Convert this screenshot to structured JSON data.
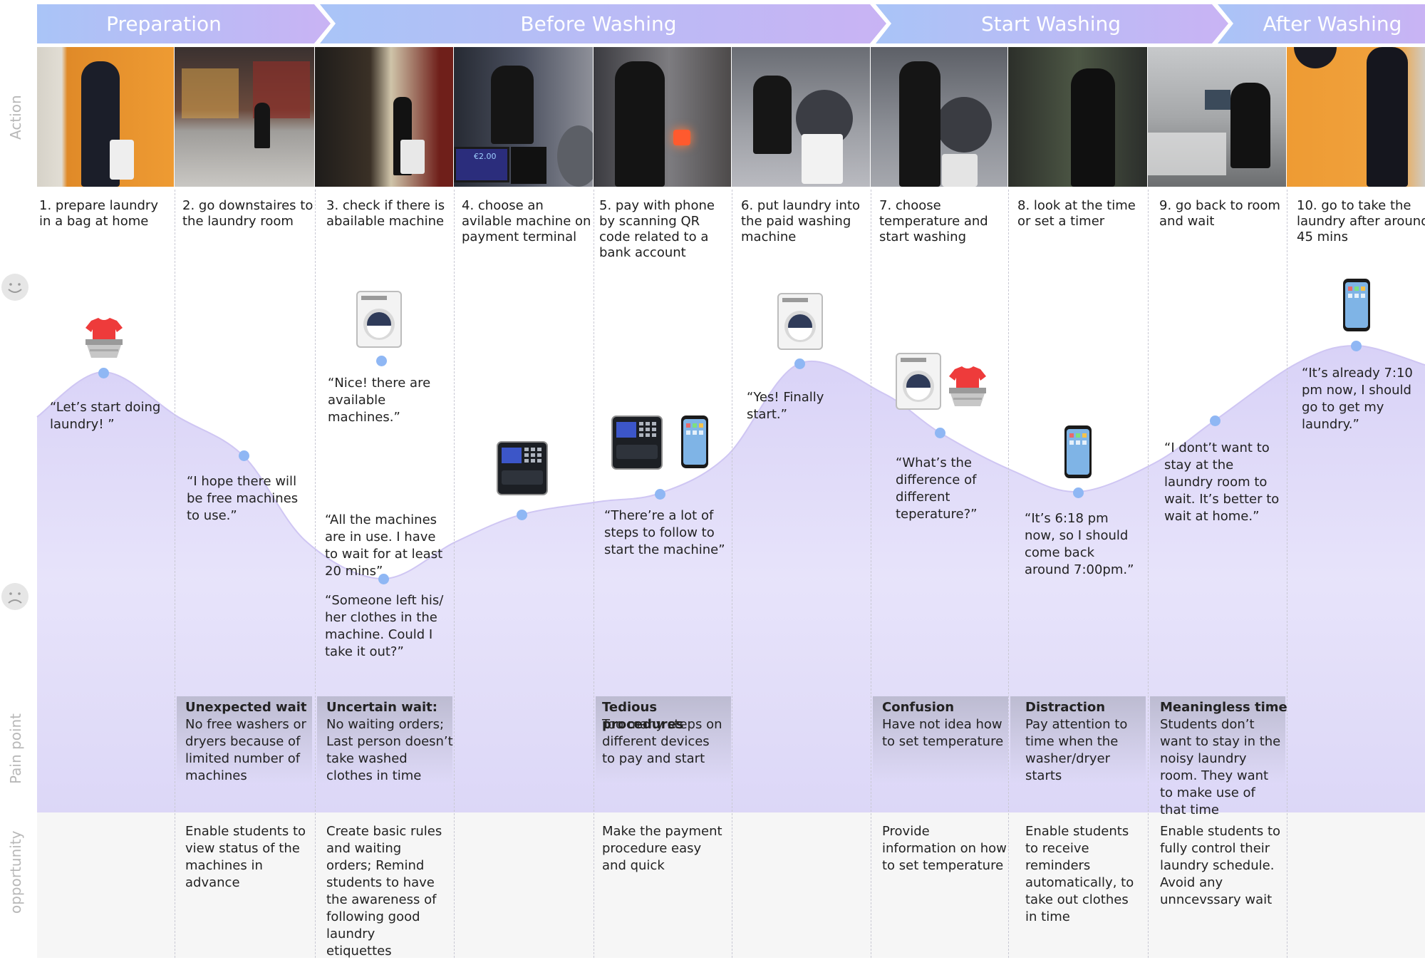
{
  "phases": [
    {
      "label": "Preparation"
    },
    {
      "label": "Before Washing"
    },
    {
      "label": "Start Washing"
    },
    {
      "label": "After Washing"
    }
  ],
  "row_labels": {
    "action": "Action",
    "pain_point": "Pain point",
    "opportunity": "opportunity"
  },
  "steps": [
    "1. prepare laundry in a bag at home",
    "2. go downstaires to the laundry room",
    "3. check if there is abailable machine",
    "4. choose an avilable machine on payment terminal",
    "5. pay with phone by scanning QR code related to a bank account",
    "6. put laundry into the paid washing machine",
    "7. choose temperature and start washing",
    "8. look at the time or set a timer",
    "9. go back to room and wait",
    "10. go to take the laundry after around 45 mins"
  ],
  "terminal_screen": "€2.00",
  "quotes": {
    "q1": "“Let’s start doing laundry! ”",
    "q2": "“I hope there will be free machines to use.”",
    "q3a": "“Nice! there are available machines.”",
    "q3b": "“All the machines are in use. I have to wait for at least 20 mins”",
    "q3c": "“Someone left his/ her clothes in the machine. Could I take it out?”",
    "q5": "“There’re a lot of steps to follow to start the machine”",
    "q6": "“Yes! Finally start.”",
    "q7": "“What’s the difference of different teperature?”",
    "q8": "“It’s 6:18 pm now, so I should come back around 7:00pm.”",
    "q9": "“I dont’t want to stay at the laundry room to wait. It’s better to wait at home.”",
    "q10": "“It’s already 7:10 pm now, I should go to get my laundry.”"
  },
  "pain_points": [
    {
      "title": "Unexpected wait",
      "text": "No free washers or dryers because of limited number of machines"
    },
    {
      "title": "Uncertain wait:",
      "text": "No waiting orders; Last person doesn’t take washed clothes in time"
    },
    {
      "title": "Tedious procedures",
      "text": "Too many steps on different devices to pay and start"
    },
    {
      "title": "Confusion",
      "text": "Have not idea how to set temperature"
    },
    {
      "title": "Distraction",
      "text": "Pay attention to time when the washer/dryer starts"
    },
    {
      "title": "Meaningless time",
      "text": "Students don’t want to stay in the noisy laundry room. They want to make use of that time"
    }
  ],
  "opportunities": [
    "Enable students to view status of the machines in advance",
    "Create basic rules and waiting orders; Remind students to have the awareness of following good laundry etiquettes",
    "Make the payment procedure easy and quick",
    "Provide information on how to set temperature",
    "Enable students to receive reminders automatically, to take out clothes in time",
    "Enable students to fully control their laundry schedule. Avoid any unncevssary wait"
  ],
  "emotion_points": [
    0.82,
    0.55,
    0.8,
    0.37,
    0.45,
    0.88,
    0.5,
    0.4,
    0.57,
    0.96,
    0.2
  ],
  "colors": {
    "phase_start": "#a9c4f7",
    "phase_end": "#c9b3f4",
    "curve_fill": "#ddd8f7",
    "dot": "#8fb7f4",
    "opportunity_bg": "#f6f6f6",
    "row_label": "#b8b8b8"
  }
}
